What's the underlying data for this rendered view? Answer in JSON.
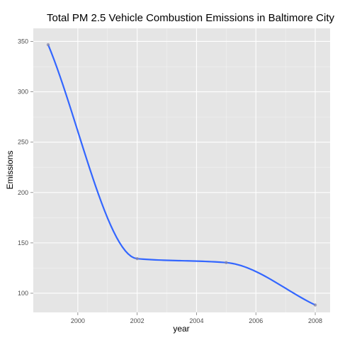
{
  "chart_data": {
    "type": "line",
    "title": "Total PM 2.5 Vehicle Combustion Emissions in Baltimore City",
    "xlabel": "year",
    "ylabel": "Emissions",
    "x": [
      1999,
      2002,
      2005,
      2008
    ],
    "series": [
      {
        "values": [
          346.8,
          134.3,
          130.4,
          88.3
        ]
      }
    ],
    "xlim": [
      1998.5,
      2008.5
    ],
    "ylim": [
      81,
      363
    ],
    "x_ticks": [
      2000,
      2002,
      2004,
      2006,
      2008
    ],
    "y_ticks": [
      100,
      150,
      200,
      250,
      300,
      350
    ],
    "x_tick_labels": [
      "2000",
      "2002",
      "2004",
      "2006",
      "2008"
    ],
    "y_tick_labels": [
      "100",
      "150",
      "200",
      "250",
      "300",
      "350"
    ],
    "grid": true,
    "smoothed": true,
    "colors": {
      "panel_background": "#e5e5e5",
      "grid_major": "#ffffff",
      "grid_minor": "#f2f2f2",
      "line": "#3366ff",
      "points": "#8a8aa8"
    }
  }
}
